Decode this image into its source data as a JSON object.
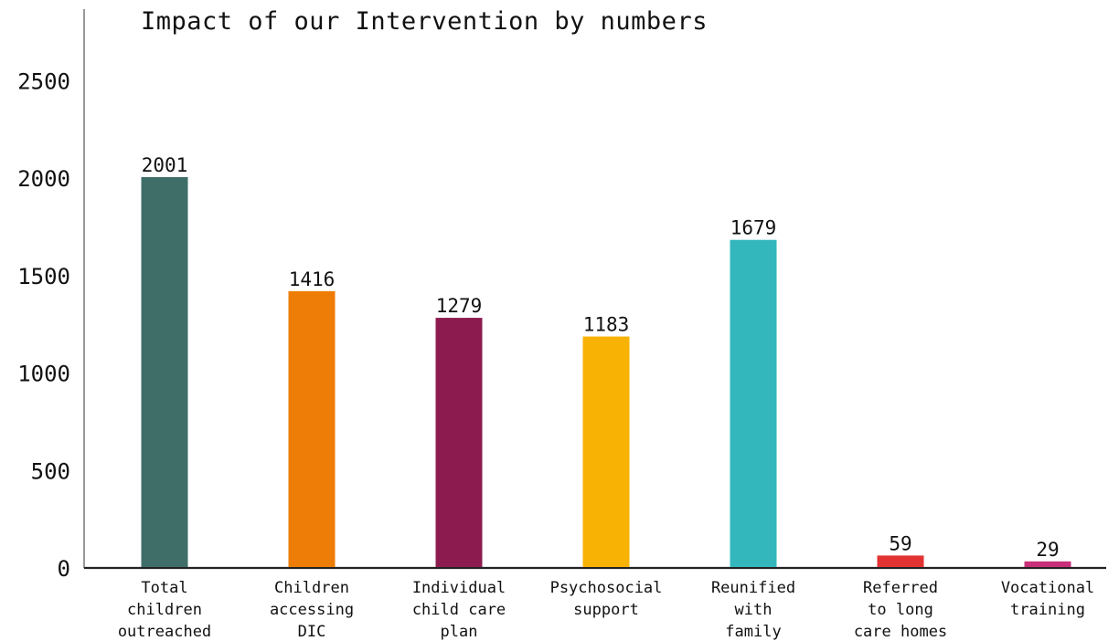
{
  "chart_data": {
    "type": "bar",
    "title": "Impact of our Intervention by numbers",
    "xlabel": "",
    "ylabel": "",
    "ylim": [
      0,
      2700
    ],
    "yticks": [
      0,
      500,
      1000,
      1500,
      2000,
      2500
    ],
    "categories": [
      [
        "Total",
        "children",
        "outreached"
      ],
      [
        "Children",
        "accessing",
        "DIC"
      ],
      [
        "Individual",
        "child care",
        "plan"
      ],
      [
        "Psychosocial",
        "support"
      ],
      [
        "Reunified",
        "with",
        "family"
      ],
      [
        "Referred",
        "to long",
        "care homes"
      ],
      [
        "Vocational",
        "training"
      ]
    ],
    "values": [
      2001,
      1416,
      1279,
      1183,
      1679,
      59,
      29
    ],
    "data_labels": [
      "2001",
      "1416",
      "1279",
      "1183",
      "1679",
      "59",
      "29"
    ],
    "colors": [
      "#3f6e69",
      "#ee7d07",
      "#8c1c4f",
      "#f8b204",
      "#33b7bc",
      "#e33232",
      "#c93079"
    ],
    "grid": false,
    "legend": "none"
  }
}
